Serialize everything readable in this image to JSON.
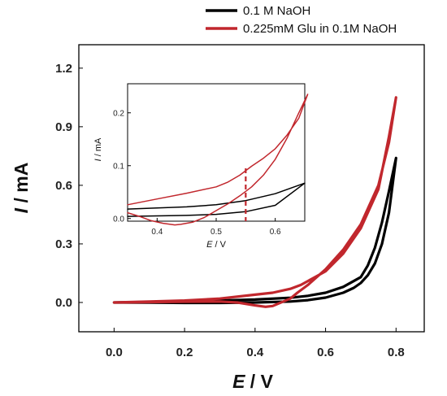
{
  "chart_data": [
    {
      "type": "line",
      "name": "main-plot",
      "xlabel_italic": "E",
      "xlabel_unit": " / V",
      "ylabel_italic": "I",
      "ylabel_unit": " / mA",
      "xlim": [
        -0.1,
        0.88
      ],
      "ylim": [
        -0.15,
        1.32
      ],
      "xticks": [
        0.0,
        0.2,
        0.4,
        0.6,
        0.8
      ],
      "xtick_labels": [
        "0.0",
        "0.2",
        "0.4",
        "0.6",
        "0.8"
      ],
      "yticks": [
        0.0,
        0.3,
        0.6,
        0.9,
        1.2
      ],
      "ytick_labels": [
        "0.0",
        "0.3",
        "0.6",
        "0.9",
        "1.2"
      ],
      "legend_position": "top-right",
      "series": [
        {
          "name": "0.1 M NaOH",
          "color": "#000000",
          "x": [
            0.0,
            0.1,
            0.2,
            0.3,
            0.4,
            0.5,
            0.55,
            0.6,
            0.65,
            0.7,
            0.72,
            0.74,
            0.76,
            0.78,
            0.8,
            0.78,
            0.76,
            0.74,
            0.72,
            0.7,
            0.68,
            0.65,
            0.6,
            0.55,
            0.5,
            0.4,
            0.3,
            0.2,
            0.1,
            0.0
          ],
          "y": [
            0.0,
            0.003,
            0.006,
            0.01,
            0.015,
            0.024,
            0.034,
            0.05,
            0.08,
            0.13,
            0.19,
            0.28,
            0.41,
            0.57,
            0.74,
            0.46,
            0.3,
            0.2,
            0.14,
            0.1,
            0.075,
            0.05,
            0.025,
            0.012,
            0.005,
            0.0,
            -0.002,
            -0.002,
            -0.001,
            0.0
          ]
        },
        {
          "name": "0.225mM Glu in 0.1M NaOH",
          "color": "#c1272d",
          "x": [
            0.0,
            0.1,
            0.2,
            0.3,
            0.4,
            0.45,
            0.5,
            0.53,
            0.55,
            0.6,
            0.65,
            0.7,
            0.75,
            0.78,
            0.8,
            0.78,
            0.75,
            0.7,
            0.65,
            0.6,
            0.55,
            0.52,
            0.5,
            0.45,
            0.43,
            0.4,
            0.35,
            0.3,
            0.2,
            0.1,
            0.0
          ],
          "y": [
            0.0,
            0.005,
            0.01,
            0.02,
            0.04,
            0.05,
            0.07,
            0.09,
            0.11,
            0.16,
            0.25,
            0.38,
            0.58,
            0.85,
            1.05,
            0.82,
            0.6,
            0.4,
            0.27,
            0.17,
            0.09,
            0.05,
            0.02,
            -0.018,
            -0.022,
            -0.015,
            0.0,
            0.005,
            0.004,
            0.002,
            0.0
          ]
        }
      ]
    },
    {
      "type": "line",
      "name": "inset-plot",
      "xlabel_italic": "E",
      "xlabel_unit": " / V",
      "ylabel_italic": "I",
      "ylabel_unit": " / mA",
      "xlim": [
        0.35,
        0.65
      ],
      "ylim": [
        -0.005,
        0.255
      ],
      "xticks": [
        0.4,
        0.5,
        0.6
      ],
      "xtick_labels": [
        "0.4",
        "0.5",
        "0.6"
      ],
      "yticks": [
        0.0,
        0.1,
        0.2
      ],
      "ytick_labels": [
        "0.0",
        "0.1",
        "0.2"
      ],
      "marker_x": 0.55,
      "marker_color": "#c1272d",
      "series": [
        {
          "name": "0.1 M NaOH",
          "color": "#000000",
          "x": [
            0.35,
            0.4,
            0.45,
            0.5,
            0.55,
            0.6,
            0.65,
            0.6,
            0.55,
            0.5,
            0.45,
            0.4,
            0.35
          ],
          "y": [
            0.018,
            0.02,
            0.022,
            0.026,
            0.034,
            0.047,
            0.067,
            0.025,
            0.013,
            0.008,
            0.006,
            0.005,
            0.004
          ]
        },
        {
          "name": "0.225mM Glu in 0.1M NaOH",
          "color": "#c1272d",
          "x": [
            0.35,
            0.4,
            0.45,
            0.5,
            0.52,
            0.54,
            0.56,
            0.58,
            0.6,
            0.62,
            0.64,
            0.655,
            0.64,
            0.62,
            0.6,
            0.58,
            0.56,
            0.54,
            0.52,
            0.5,
            0.48,
            0.46,
            0.44,
            0.43,
            0.41,
            0.39,
            0.37,
            0.35
          ],
          "y": [
            0.026,
            0.037,
            0.048,
            0.06,
            0.069,
            0.082,
            0.099,
            0.114,
            0.132,
            0.158,
            0.19,
            0.235,
            0.2,
            0.152,
            0.112,
            0.082,
            0.06,
            0.043,
            0.028,
            0.015,
            0.002,
            -0.007,
            -0.011,
            -0.012,
            -0.009,
            -0.004,
            0.004,
            0.011
          ]
        }
      ]
    }
  ]
}
